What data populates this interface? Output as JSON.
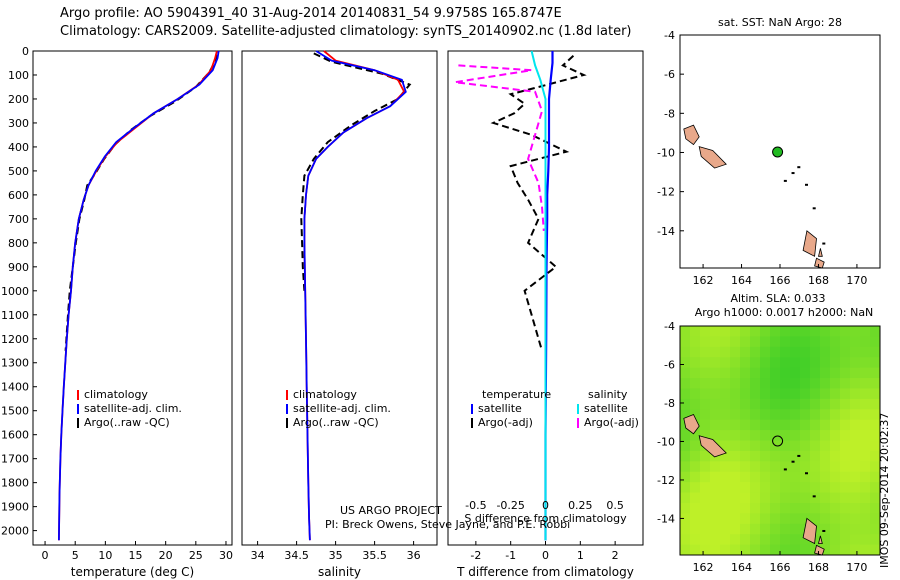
{
  "header": {
    "line1": "Argo profile: AO 5904391_40 31-Aug-2014 20140831_54 9.9758S 165.8747E",
    "line2": "Climatology: CARS2009. Satellite-adjusted climatology: synTS_20140902.nc (1.8d later)"
  },
  "footer_stamp": "IMOS 09-Sep-2014 20:02:37",
  "credits": {
    "line1": "US ARGO PROJECT",
    "line2": "PI: Breck Owens, Steve Jayne, and P.E. Robbi"
  },
  "colors": {
    "climatology": "#ff0000",
    "satellite": "#0000ff",
    "argo": "#000000",
    "sal_satellite": "#00e5ee",
    "sal_argo": "#ff00ff",
    "land": "#e8a88a"
  },
  "chart_data": [
    {
      "type": "line",
      "xlabel": "temperature (deg C)",
      "ylabel": "",
      "xlim": [
        -2,
        31
      ],
      "ylim": [
        2060,
        0
      ],
      "xticks": [
        0,
        5,
        10,
        15,
        20,
        25,
        30
      ],
      "yticks": [
        0,
        100,
        200,
        300,
        400,
        500,
        600,
        700,
        800,
        900,
        1000,
        1100,
        1200,
        1300,
        1400,
        1500,
        1600,
        1700,
        1800,
        1900,
        2000
      ],
      "legend": [
        "climatology",
        "satellite-adj. clim.",
        "Argo(..raw -QC)"
      ],
      "series": [
        {
          "name": "climatology",
          "x": [
            28.5,
            28.2,
            27.5,
            25.5,
            22,
            18,
            15,
            12,
            10,
            8.5,
            7.2,
            6.4,
            5.6,
            5.0,
            4.6,
            4.3,
            3.9,
            3.6,
            3.35,
            3.1,
            2.9,
            2.7,
            2.55,
            2.4,
            2.3
          ],
          "y": [
            0,
            30,
            80,
            140,
            200,
            260,
            320,
            380,
            440,
            500,
            560,
            620,
            700,
            800,
            900,
            1000,
            1100,
            1200,
            1300,
            1400,
            1500,
            1600,
            1700,
            1850,
            2040
          ]
        },
        {
          "name": "satellite-adj. clim.",
          "x": [
            28.8,
            28.6,
            27.8,
            25.6,
            22,
            18,
            14.8,
            11.8,
            9.9,
            8.4,
            7.2,
            6.4,
            5.6,
            5.0,
            4.6,
            4.3,
            3.9,
            3.6,
            3.35,
            3.1,
            2.9,
            2.7,
            2.55,
            2.4,
            2.3
          ],
          "y": [
            0,
            30,
            80,
            140,
            200,
            260,
            320,
            380,
            440,
            500,
            560,
            620,
            700,
            800,
            900,
            1000,
            1100,
            1200,
            1300,
            1400,
            1500,
            1600,
            1700,
            1850,
            2040
          ]
        },
        {
          "name": "Argo(..raw -QC)",
          "x": [
            28.4,
            28.3,
            27.2,
            25.0,
            21.6,
            17.5,
            14.2,
            11.6,
            9.8,
            8.6,
            7.0,
            6.5,
            5.7,
            5.1,
            4.6,
            4.1,
            3.8,
            3.4
          ],
          "y": [
            15,
            40,
            90,
            150,
            210,
            270,
            330,
            390,
            450,
            500,
            560,
            620,
            700,
            800,
            900,
            1000,
            1100,
            1250
          ]
        }
      ]
    },
    {
      "type": "line",
      "xlabel": "salinity",
      "xlim": [
        33.8,
        36.3
      ],
      "ylim": [
        2060,
        0
      ],
      "xticks": [
        34,
        34.5,
        35,
        35.5,
        36
      ],
      "legend": [
        "climatology",
        "satellite-adj. clim.",
        "Argo(..raw -QC)"
      ],
      "series": [
        {
          "name": "climatology",
          "x": [
            34.85,
            35.0,
            35.5,
            35.8,
            35.88,
            35.7,
            35.4,
            35.1,
            34.9,
            34.75,
            34.65,
            34.62,
            34.6,
            34.6,
            34.61,
            34.62,
            34.63,
            34.64,
            34.65,
            34.66,
            34.67
          ],
          "y": [
            0,
            40,
            80,
            120,
            170,
            230,
            280,
            340,
            400,
            450,
            520,
            600,
            700,
            800,
            1000,
            1200,
            1400,
            1600,
            1800,
            1950,
            2040
          ]
        },
        {
          "name": "satellite-adj. clim.",
          "x": [
            34.75,
            34.95,
            35.5,
            35.85,
            35.9,
            35.7,
            35.4,
            35.1,
            34.9,
            34.75,
            34.65,
            34.62,
            34.6,
            34.6,
            34.61,
            34.62,
            34.63,
            34.64,
            34.65,
            34.66,
            34.67
          ],
          "y": [
            0,
            40,
            80,
            120,
            170,
            230,
            280,
            340,
            400,
            450,
            520,
            600,
            700,
            800,
            1000,
            1200,
            1400,
            1600,
            1800,
            1950,
            2040
          ]
        },
        {
          "name": "Argo(..raw -QC)",
          "x": [
            34.72,
            34.95,
            35.6,
            35.95,
            35.8,
            35.5,
            35.2,
            34.9,
            34.72,
            34.6,
            34.58,
            34.56,
            34.57,
            34.58,
            34.6
          ],
          "y": [
            10,
            45,
            95,
            140,
            200,
            250,
            310,
            380,
            450,
            520,
            600,
            700,
            800,
            900,
            1000
          ]
        }
      ]
    },
    {
      "type": "line",
      "xlabel": "T difference from climatology",
      "xlabel2": "S difference from climatology",
      "xlim": [
        -2.8,
        2.8
      ],
      "ylim": [
        2060,
        0
      ],
      "xticks": [
        -2,
        -1,
        0,
        1,
        2
      ],
      "xticks2": [
        "-0.5",
        "-0.25",
        "0",
        "0.25",
        "0.5"
      ],
      "legend": [
        "temperature",
        "satellite",
        "Argo(-adj)",
        "salinity",
        "satellite",
        "Argo(-adj)"
      ],
      "series": [
        {
          "name": "temperature satellite",
          "x": [
            0.2,
            0.2,
            0.15,
            0.1,
            0.1,
            0.1,
            0.08,
            0.05,
            0.05,
            0.03,
            0.02,
            0,
            0
          ],
          "y": [
            0,
            50,
            120,
            200,
            300,
            400,
            500,
            600,
            700,
            900,
            1200,
            1600,
            2040
          ]
        },
        {
          "name": "temperature Argo(-adj)",
          "x": [
            0.8,
            0.5,
            1.1,
            -0.2,
            -1.0,
            -0.6,
            -0.9,
            -1.5,
            -0.4,
            0.6,
            -1.0,
            -0.8,
            -0.5,
            -0.2,
            -0.5,
            0.3,
            -0.6,
            -0.4,
            -0.2,
            -0.1
          ],
          "y": [
            20,
            60,
            100,
            150,
            180,
            220,
            260,
            300,
            350,
            420,
            480,
            550,
            620,
            700,
            800,
            900,
            1000,
            1100,
            1200,
            1250
          ]
        },
        {
          "name": "salinity satellite",
          "x": [
            -0.4,
            -0.3,
            -0.15,
            0,
            0,
            0,
            0,
            0,
            0,
            0
          ],
          "y": [
            0,
            60,
            120,
            200,
            400,
            600,
            800,
            1200,
            1600,
            2040
          ]
        },
        {
          "name": "salinity Argo(-adj)",
          "x": [
            -2.5,
            -0.4,
            -2.6,
            -0.3,
            -0.1,
            -0.3,
            -0.5,
            -0.2,
            -0.1,
            -0.05
          ],
          "y": [
            60,
            80,
            130,
            170,
            250,
            350,
            450,
            550,
            650,
            750
          ]
        }
      ]
    },
    {
      "type": "heatmap",
      "title": "sat. SST: NaN Argo: 28",
      "xlim": [
        160.8,
        171.2
      ],
      "ylim": [
        -15.9,
        -4
      ],
      "xticks": [
        162,
        164,
        166,
        168,
        170
      ],
      "yticks": [
        -4,
        -6,
        -8,
        -10,
        -12,
        -14
      ],
      "marker": {
        "lon": 165.8747,
        "lat": -9.9758
      }
    },
    {
      "type": "heatmap",
      "title": "Altim. SLA: 0.033",
      "subtitle": "Argo h1000: 0.0017 h2000: NaN",
      "xlim": [
        160.8,
        171.2
      ],
      "ylim": [
        -15.9,
        -4
      ],
      "xticks": [
        162,
        164,
        166,
        168,
        170
      ],
      "yticks": [
        -4,
        -6,
        -8,
        -10,
        -12,
        -14
      ],
      "marker": {
        "lon": 165.8747,
        "lat": -9.9758
      }
    }
  ]
}
